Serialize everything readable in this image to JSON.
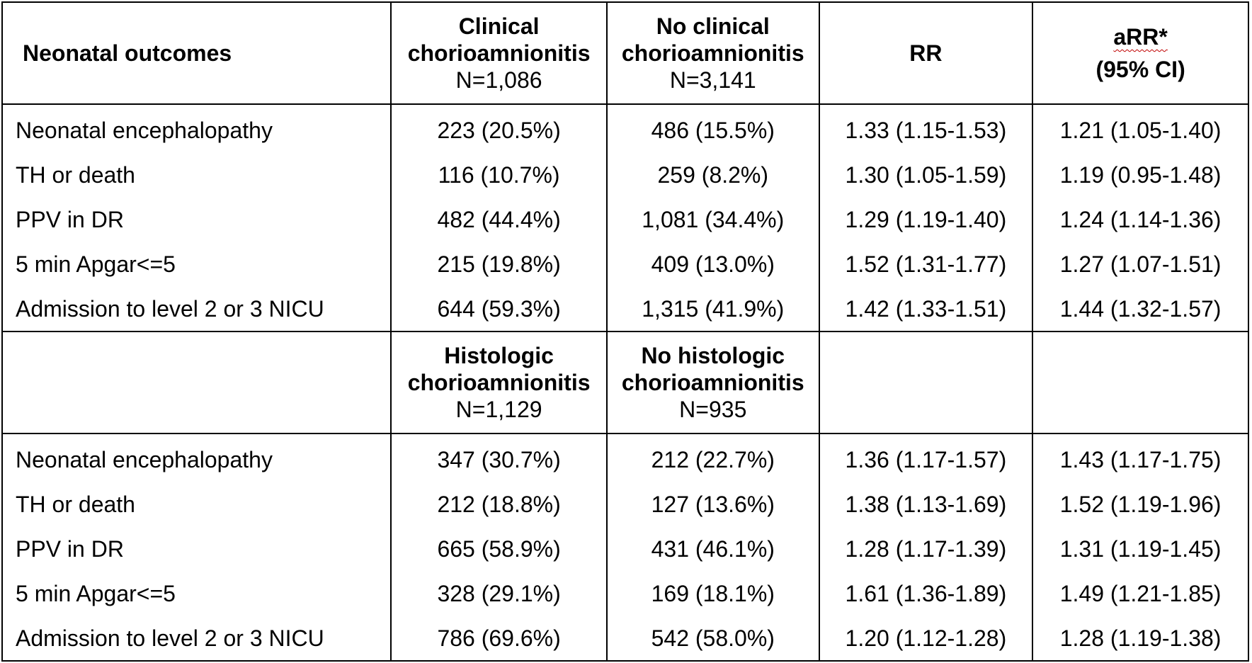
{
  "table": {
    "groups": [
      {
        "header": {
          "outcomes_label": "Neonatal outcomes",
          "exposed_title_line1": "Clinical",
          "exposed_title_line2": "chorioamnionitis",
          "exposed_n": "N=1,086",
          "unexposed_title_line1": "No clinical",
          "unexposed_title_line2": "chorioamnionitis",
          "unexposed_n": "N=3,141",
          "rr_label": "RR",
          "arr_label": "aRR*",
          "ci_label": "(95% CI)"
        },
        "rows": [
          {
            "outcome": "Neonatal encephalopathy",
            "exposed": "223 (20.5%)",
            "unexposed": "486 (15.5%)",
            "rr": "1.33 (1.15-1.53)",
            "arr": "1.21 (1.05-1.40)"
          },
          {
            "outcome": "TH or death",
            "exposed": "116 (10.7%)",
            "unexposed": "259 (8.2%)",
            "rr": "1.30 (1.05-1.59)",
            "arr": "1.19 (0.95-1.48)"
          },
          {
            "outcome": "PPV in DR",
            "exposed": "482 (44.4%)",
            "unexposed": "1,081 (34.4%)",
            "rr": "1.29 (1.19-1.40)",
            "arr": "1.24 (1.14-1.36)"
          },
          {
            "outcome": "5 min Apgar<=5",
            "exposed": "215 (19.8%)",
            "unexposed": "409 (13.0%)",
            "rr": "1.52 (1.31-1.77)",
            "arr": "1.27 (1.07-1.51)"
          },
          {
            "outcome": "Admission to level 2 or 3 NICU",
            "exposed": "644 (59.3%)",
            "unexposed": "1,315 (41.9%)",
            "rr": "1.42 (1.33-1.51)",
            "arr": "1.44 (1.32-1.57)"
          }
        ]
      },
      {
        "header": {
          "outcomes_label": "",
          "exposed_title_line1": "Histologic",
          "exposed_title_line2": "chorioamnionitis",
          "exposed_n": "N=1,129",
          "unexposed_title_line1": "No histologic",
          "unexposed_title_line2": "chorioamnionitis",
          "unexposed_n": "N=935",
          "rr_label": "",
          "arr_label": "",
          "ci_label": ""
        },
        "rows": [
          {
            "outcome": "Neonatal encephalopathy",
            "exposed": "347 (30.7%)",
            "unexposed": "212 (22.7%)",
            "rr": "1.36 (1.17-1.57)",
            "arr": "1.43 (1.17-1.75)"
          },
          {
            "outcome": "TH or death",
            "exposed": "212 (18.8%)",
            "unexposed": "127 (13.6%)",
            "rr": "1.38 (1.13-1.69)",
            "arr": "1.52 (1.19-1.96)"
          },
          {
            "outcome": "PPV in DR",
            "exposed": "665 (58.9%)",
            "unexposed": "431 (46.1%)",
            "rr": "1.28 (1.17-1.39)",
            "arr": "1.31 (1.19-1.45)"
          },
          {
            "outcome": "5 min Apgar<=5",
            "exposed": "328 (29.1%)",
            "unexposed": "169 (18.1%)",
            "rr": "1.61 (1.36-1.89)",
            "arr": "1.49 (1.21-1.85)"
          },
          {
            "outcome": "Admission to level 2 or 3 NICU",
            "exposed": "786 (69.6%)",
            "unexposed": "542 (58.0%)",
            "rr": "1.20 (1.12-1.28)",
            "arr": "1.28 (1.19-1.38)"
          }
        ]
      }
    ]
  }
}
